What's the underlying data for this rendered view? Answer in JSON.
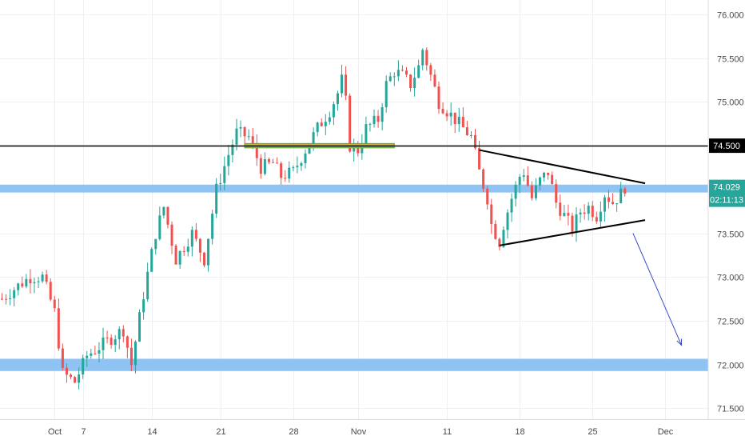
{
  "chart_data": {
    "type": "candlestick",
    "title": "",
    "xlabel": "",
    "ylabel": "",
    "ylim": [
      71.35,
      76.2
    ],
    "x_ticks": [
      {
        "label": "Oct",
        "bar": 13
      },
      {
        "label": "7",
        "bar": 20
      },
      {
        "label": "14",
        "bar": 37
      },
      {
        "label": "21",
        "bar": 54
      },
      {
        "label": "28",
        "bar": 72
      },
      {
        "label": "Nov",
        "bar": 88
      },
      {
        "label": "11",
        "bar": 110
      },
      {
        "label": "18",
        "bar": 128
      },
      {
        "label": "25",
        "bar": 146
      },
      {
        "label": "Dec",
        "bar": 164
      }
    ],
    "y_ticks": [
      "71.500",
      "72.000",
      "72.500",
      "73.000",
      "73.500",
      "74.000",
      "74.500",
      "75.000",
      "75.500",
      "76.000"
    ],
    "price_path": [
      {
        "bar": 0,
        "price": 72.75
      },
      {
        "bar": 4,
        "price": 72.9
      },
      {
        "bar": 7,
        "price": 73.0
      },
      {
        "bar": 10,
        "price": 73.0
      },
      {
        "bar": 13,
        "price": 72.6
      },
      {
        "bar": 15,
        "price": 71.9
      },
      {
        "bar": 18,
        "price": 71.8
      },
      {
        "bar": 21,
        "price": 72.1
      },
      {
        "bar": 24,
        "price": 72.2
      },
      {
        "bar": 27,
        "price": 72.3
      },
      {
        "bar": 30,
        "price": 72.4
      },
      {
        "bar": 32,
        "price": 72.0
      },
      {
        "bar": 35,
        "price": 72.8
      },
      {
        "bar": 38,
        "price": 73.5
      },
      {
        "bar": 40,
        "price": 73.8
      },
      {
        "bar": 43,
        "price": 73.2
      },
      {
        "bar": 47,
        "price": 73.5
      },
      {
        "bar": 50,
        "price": 73.2
      },
      {
        "bar": 53,
        "price": 74.0
      },
      {
        "bar": 56,
        "price": 74.4
      },
      {
        "bar": 58,
        "price": 74.65
      },
      {
        "bar": 61,
        "price": 74.6
      },
      {
        "bar": 64,
        "price": 74.25
      },
      {
        "bar": 67,
        "price": 74.3
      },
      {
        "bar": 69,
        "price": 74.15
      },
      {
        "bar": 72,
        "price": 74.2
      },
      {
        "bar": 75,
        "price": 74.45
      },
      {
        "bar": 78,
        "price": 74.7
      },
      {
        "bar": 81,
        "price": 74.9
      },
      {
        "bar": 83,
        "price": 75.1
      },
      {
        "bar": 84,
        "price": 75.25
      },
      {
        "bar": 85,
        "price": 75.0
      },
      {
        "bar": 86,
        "price": 74.5
      },
      {
        "bar": 88,
        "price": 74.45
      },
      {
        "bar": 90,
        "price": 74.7
      },
      {
        "bar": 93,
        "price": 74.8
      },
      {
        "bar": 95,
        "price": 75.2
      },
      {
        "bar": 97,
        "price": 75.35
      },
      {
        "bar": 99,
        "price": 75.3
      },
      {
        "bar": 101,
        "price": 75.2
      },
      {
        "bar": 103,
        "price": 75.4
      },
      {
        "bar": 104,
        "price": 75.6
      },
      {
        "bar": 106,
        "price": 75.3
      },
      {
        "bar": 108,
        "price": 75.0
      },
      {
        "bar": 110,
        "price": 74.9
      },
      {
        "bar": 113,
        "price": 74.75
      },
      {
        "bar": 116,
        "price": 74.6
      },
      {
        "bar": 118,
        "price": 74.2
      },
      {
        "bar": 120,
        "price": 73.9
      },
      {
        "bar": 121,
        "price": 73.6
      },
      {
        "bar": 122,
        "price": 73.5
      },
      {
        "bar": 123,
        "price": 73.4
      },
      {
        "bar": 124,
        "price": 73.6
      },
      {
        "bar": 126,
        "price": 73.9
      },
      {
        "bar": 128,
        "price": 74.15
      },
      {
        "bar": 129,
        "price": 74.2
      },
      {
        "bar": 131,
        "price": 73.9
      },
      {
        "bar": 133,
        "price": 74.1
      },
      {
        "bar": 135,
        "price": 74.2
      },
      {
        "bar": 137,
        "price": 73.85
      },
      {
        "bar": 139,
        "price": 73.7
      },
      {
        "bar": 141,
        "price": 73.55
      },
      {
        "bar": 143,
        "price": 73.75
      },
      {
        "bar": 145,
        "price": 73.8
      },
      {
        "bar": 147,
        "price": 73.7
      },
      {
        "bar": 149,
        "price": 73.95
      },
      {
        "bar": 151,
        "price": 73.85
      },
      {
        "bar": 153,
        "price": 73.95
      },
      {
        "bar": 154,
        "price": 74.03
      }
    ],
    "levels": {
      "resistance_line": 74.5,
      "upper_zone": [
        73.965,
        74.055
      ],
      "lower_zone": [
        71.925,
        72.065
      ],
      "highlight_zone": [
        74.475,
        74.525
      ]
    },
    "triangle": {
      "upper": {
        "from": {
          "bar": 118,
          "price": 74.45
        },
        "to": {
          "bar": 159,
          "price": 74.07
        }
      },
      "lower": {
        "from": {
          "bar": 123,
          "price": 73.36
        },
        "to": {
          "bar": 159,
          "price": 73.65
        }
      }
    },
    "projection_arrow": {
      "from": {
        "bar": 156,
        "price": 73.5
      },
      "to": {
        "bar": 168,
        "price": 72.22
      }
    },
    "price_badge": {
      "value": "74.500"
    },
    "current_badge": {
      "value": "74.029",
      "countdown": "02:11:13"
    },
    "bar_range": [
      0,
      172
    ],
    "colors": {
      "up": "#26a69a",
      "down": "#ef5350",
      "grid": "#eef0f3",
      "zone": "#8ec3f3",
      "line": "#000000",
      "arrow": "#3b4fc8",
      "badge_black": "#000000",
      "badge_teal": "#26a69a",
      "highlight_fill": "#c9b43a",
      "highlight_stroke": "#4caf50"
    }
  }
}
